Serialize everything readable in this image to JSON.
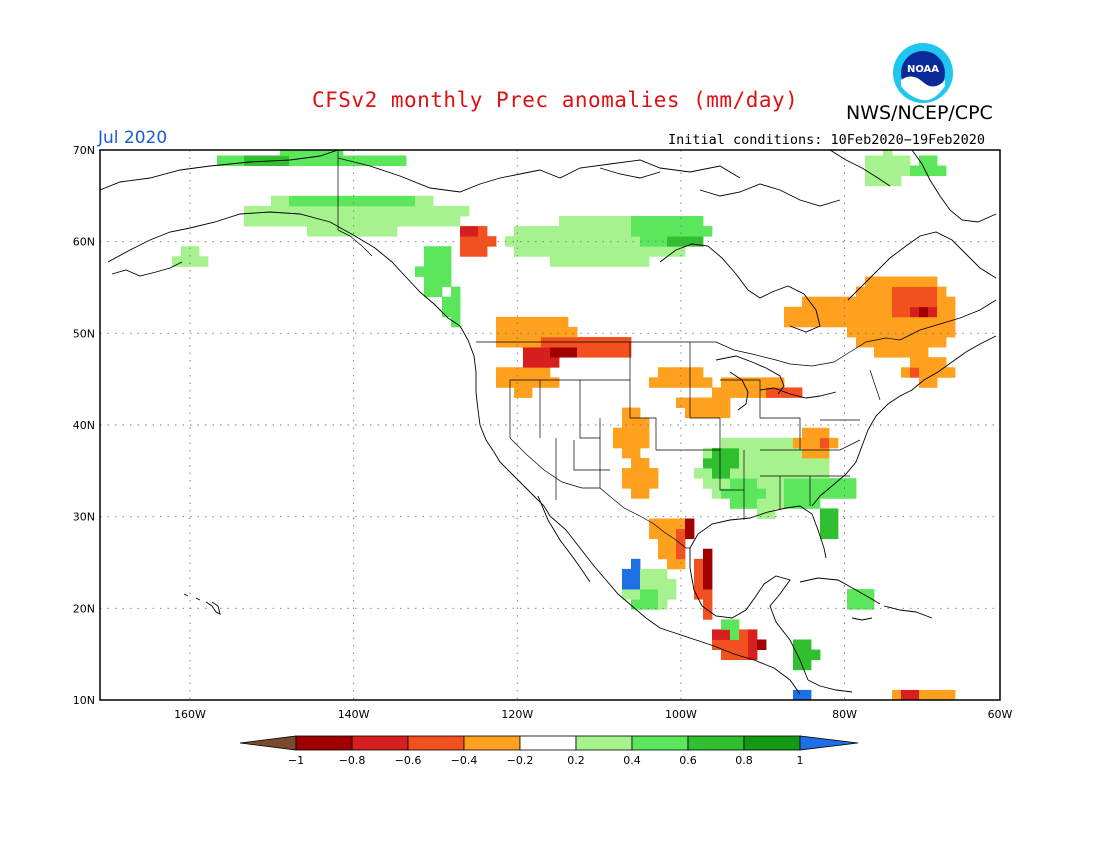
{
  "header": {
    "title": "CFSv2 monthly Prec anomalies (mm/day)",
    "org": "NWS/NCEP/CPC",
    "valid_month": "Jul 2020",
    "initial_conditions": "Initial conditions: 10Feb2020−19Feb2020",
    "logo_text": "NOAA"
  },
  "map": {
    "lat_labels": [
      "70N",
      "60N",
      "50N",
      "40N",
      "30N",
      "20N",
      "10N"
    ],
    "lon_labels": [
      "160W",
      "140W",
      "120W",
      "100W",
      "80W",
      "60W"
    ]
  },
  "colorbar": {
    "tick_labels": [
      "−1",
      "−0.8",
      "−0.6",
      "−0.4",
      "−0.2",
      "0.2",
      "0.4",
      "0.6",
      "0.8",
      "1"
    ],
    "colors": [
      "#7a4a2e",
      "#a00000",
      "#d71f1f",
      "#f2501e",
      "#ffa01e",
      "#ffffff",
      "#a6f28e",
      "#5ce65c",
      "#2fbf2f",
      "#139a13",
      "#1e6ee6"
    ]
  }
}
